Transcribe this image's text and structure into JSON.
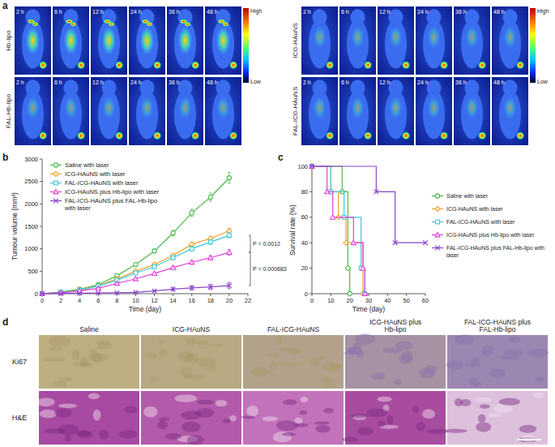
{
  "panel_labels": [
    "a",
    "b",
    "c",
    "d"
  ],
  "imaging": {
    "times": [
      "2 h",
      "6 h",
      "12 h",
      "24 h",
      "36 h",
      "48 h"
    ],
    "groups": [
      {
        "rows": [
          "Hb-lipo",
          "FAL-Hb-lipo"
        ]
      },
      {
        "rows": [
          "ICG-HAuNS",
          "FAL-ICG-HAuNS"
        ]
      }
    ],
    "colorbar_labels": [
      "High",
      "Low"
    ]
  },
  "chart_data": [
    {
      "type": "line",
      "x_label": "Time (day)",
      "y_label": "Tumour volume (mm³)",
      "x": [
        0,
        2,
        4,
        6,
        8,
        10,
        12,
        14,
        16,
        18,
        20
      ],
      "xlim": [
        0,
        22
      ],
      "xticks": [
        0,
        2,
        4,
        6,
        8,
        10,
        12,
        14,
        16,
        18,
        20,
        22
      ],
      "ylim": [
        0,
        3000
      ],
      "yticks": [
        0,
        500,
        1000,
        1500,
        2000,
        2500,
        3000
      ],
      "grid": false,
      "legend": "upper left",
      "series": [
        {
          "name": "Saline with laser",
          "color": "#4cbb4c",
          "marker": "circle",
          "values": [
            0,
            40,
            100,
            200,
            400,
            650,
            950,
            1350,
            1800,
            2150,
            2580
          ],
          "errors": [
            0,
            5,
            10,
            15,
            25,
            30,
            40,
            60,
            80,
            90,
            120
          ]
        },
        {
          "name": "ICG-HAuNS with laser",
          "color": "#f0a020",
          "marker": "diamond",
          "values": [
            0,
            30,
            80,
            180,
            330,
            500,
            650,
            850,
            1100,
            1230,
            1400
          ],
          "errors": [
            0,
            5,
            8,
            12,
            20,
            25,
            30,
            40,
            50,
            50,
            55
          ]
        },
        {
          "name": "FAL-ICG-HAuNS with laser",
          "color": "#3cc8d8",
          "marker": "square",
          "values": [
            0,
            30,
            75,
            170,
            300,
            460,
            600,
            800,
            1000,
            1150,
            1300
          ],
          "errors": [
            0,
            5,
            8,
            12,
            18,
            22,
            28,
            35,
            45,
            50,
            55
          ]
        },
        {
          "name": "ICG-HAuNS plus Hb-lipo with laser",
          "color": "#e040d8",
          "marker": "triangle",
          "values": [
            0,
            20,
            60,
            120,
            230,
            330,
            450,
            580,
            700,
            800,
            920
          ],
          "errors": [
            0,
            4,
            6,
            10,
            15,
            20,
            25,
            30,
            40,
            45,
            60
          ]
        },
        {
          "name": "FAL-ICG-HAuNS plus FAL-Hb-lipo with laser",
          "color": "#8a44c8",
          "marker": "x",
          "values": [
            0,
            5,
            10,
            15,
            20,
            30,
            60,
            100,
            130,
            150,
            180
          ],
          "errors": [
            0,
            2,
            3,
            4,
            5,
            8,
            20,
            40,
            50,
            60,
            70
          ]
        }
      ],
      "annotations": [
        {
          "text": "P = 0.0012"
        },
        {
          "text": "P = 0.000683"
        }
      ]
    },
    {
      "type": "line",
      "x_label": "Time (day)",
      "y_label": "Survival rate (%)",
      "xlim": [
        0,
        60
      ],
      "xticks": [
        0,
        10,
        20,
        30,
        40,
        50,
        60
      ],
      "ylim": [
        0,
        100
      ],
      "yticks": [
        0,
        20,
        40,
        60,
        80,
        100
      ],
      "grid": false,
      "legend": "right",
      "line_style": "step",
      "series": [
        {
          "name": "Saline with laser",
          "color": "#4cbb4c",
          "marker": "circle",
          "x": [
            0,
            16,
            19,
            20
          ],
          "values": [
            100,
            80,
            20,
            0
          ]
        },
        {
          "name": "ICG-HAuNS with laser",
          "color": "#f0a020",
          "marker": "diamond",
          "x": [
            0,
            10,
            14,
            18,
            27
          ],
          "values": [
            100,
            80,
            60,
            40,
            0
          ]
        },
        {
          "name": "FAL-ICG-HAuNS with laser",
          "color": "#3cc8d8",
          "marker": "square",
          "x": [
            0,
            10,
            17,
            26,
            28
          ],
          "values": [
            100,
            80,
            60,
            20,
            0
          ]
        },
        {
          "name": "ICG-HAuNS plus Hb-lipo with laser",
          "color": "#e040d8",
          "marker": "triangle",
          "x": [
            0,
            8,
            11,
            22,
            27,
            28
          ],
          "values": [
            100,
            80,
            60,
            40,
            20,
            0
          ]
        },
        {
          "name": "FAL-ICG-HAuNS plus FAL-Hb-lipo with laser",
          "color": "#8a44c8",
          "marker": "x",
          "x": [
            0,
            34,
            44,
            60
          ],
          "values": [
            100,
            80,
            40,
            40
          ]
        }
      ]
    }
  ],
  "histology": {
    "columns": [
      "Saline",
      "ICG-HAuNS",
      "FAL-ICG-HAuNS",
      "ICG-HAuNS plus Hb-lipo",
      "FAL-ICG-HAuNS plus FAL-Hb-lipo"
    ],
    "rows": [
      "Ki67",
      "H&E"
    ]
  }
}
